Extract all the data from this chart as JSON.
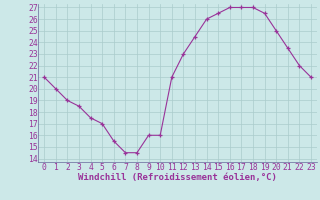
{
  "x": [
    0,
    1,
    2,
    3,
    4,
    5,
    6,
    7,
    8,
    9,
    10,
    11,
    12,
    13,
    14,
    15,
    16,
    17,
    18,
    19,
    20,
    21,
    22,
    23
  ],
  "y": [
    21,
    20,
    19,
    18.5,
    17.5,
    17,
    15.5,
    14.5,
    14.5,
    16,
    16,
    21,
    23,
    24.5,
    26,
    26.5,
    27,
    27,
    27,
    26.5,
    25,
    23.5,
    22,
    21
  ],
  "line_color": "#993399",
  "marker": "+",
  "bg_color": "#cce8e8",
  "grid_color": "#aacccc",
  "xlabel": "Windchill (Refroidissement éolien,°C)",
  "ylim": [
    14,
    27
  ],
  "xlim": [
    0,
    23
  ],
  "yticks": [
    14,
    15,
    16,
    17,
    18,
    19,
    20,
    21,
    22,
    23,
    24,
    25,
    26,
    27
  ],
  "xticks": [
    0,
    1,
    2,
    3,
    4,
    5,
    6,
    7,
    8,
    9,
    10,
    11,
    12,
    13,
    14,
    15,
    16,
    17,
    18,
    19,
    20,
    21,
    22,
    23
  ],
  "tick_color": "#993399",
  "label_color": "#993399",
  "tick_fontsize": 5.8,
  "xlabel_fontsize": 6.5
}
